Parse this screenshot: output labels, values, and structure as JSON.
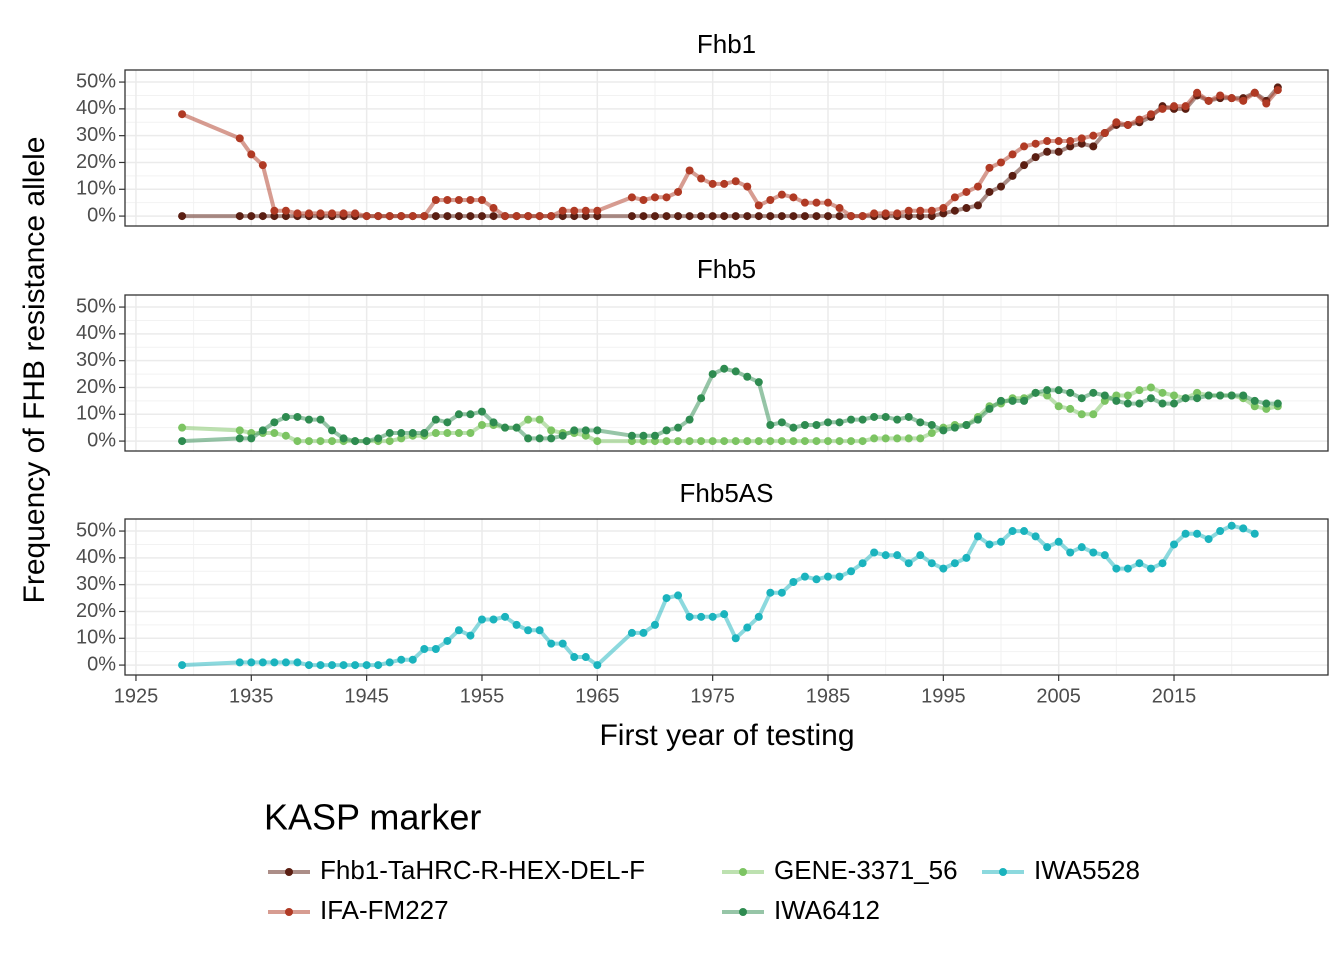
{
  "figure": {
    "ylabel": "Frequency of FHB resistance allele",
    "xlabel": "First year of testing",
    "legend_title": "KASP marker"
  },
  "chart_data": [
    {
      "type": "line",
      "title": "Fhb1",
      "xlim": [
        1924.05,
        2028.35
      ],
      "xticks": [
        1925,
        1935,
        1945,
        1955,
        1965,
        1975,
        1985,
        1995,
        2005,
        2015
      ],
      "ylim": [
        -3.7,
        54.5
      ],
      "yticks": [
        {
          "value": 0,
          "label": "0%"
        },
        {
          "value": 10,
          "label": "10%"
        },
        {
          "value": 20,
          "label": "20%"
        },
        {
          "value": 30,
          "label": "30%"
        },
        {
          "value": 40,
          "label": "40%"
        },
        {
          "value": 50,
          "label": "50%"
        }
      ],
      "grid": true,
      "x": [
        1929,
        1934,
        1935,
        1936,
        1937,
        1938,
        1939,
        1940,
        1941,
        1942,
        1943,
        1944,
        1945,
        1946,
        1947,
        1948,
        1949,
        1950,
        1951,
        1952,
        1953,
        1954,
        1955,
        1956,
        1957,
        1958,
        1959,
        1960,
        1961,
        1962,
        1963,
        1964,
        1965,
        1968,
        1969,
        1970,
        1971,
        1972,
        1973,
        1974,
        1975,
        1976,
        1977,
        1978,
        1979,
        1980,
        1981,
        1982,
        1983,
        1984,
        1985,
        1986,
        1987,
        1988,
        1989,
        1990,
        1991,
        1992,
        1993,
        1994,
        1995,
        1996,
        1997,
        1998,
        1999,
        2000,
        2001,
        2002,
        2003,
        2004,
        2005,
        2006,
        2007,
        2008,
        2009,
        2010,
        2011,
        2012,
        2013,
        2014,
        2015,
        2016,
        2017,
        2018,
        2019,
        2020,
        2021,
        2022,
        2023,
        2024
      ],
      "series": [
        {
          "name": "Fhb1-TaHRC-R-HEX-DEL-F",
          "color": "#5a1e12",
          "values": [
            0,
            0,
            0,
            0,
            0,
            0,
            0,
            0,
            0,
            0,
            0,
            0,
            0,
            0,
            0,
            0,
            0,
            0,
            0,
            0,
            0,
            0,
            0,
            0,
            0,
            0,
            0,
            0,
            0,
            0,
            0,
            0,
            0,
            0,
            0,
            0,
            0,
            0,
            0,
            0,
            0,
            0,
            0,
            0,
            0,
            0,
            0,
            0,
            0,
            0,
            0,
            0,
            0,
            0,
            0,
            0,
            0,
            0,
            0,
            0,
            1,
            2,
            3,
            4,
            9,
            11,
            15,
            19,
            22,
            24,
            24,
            26,
            27,
            26,
            31,
            34,
            34,
            35,
            37,
            41,
            40,
            40,
            45,
            43,
            44,
            44,
            44,
            46,
            43,
            48
          ]
        },
        {
          "name": "IFA-FM227",
          "color": "#b03a24",
          "values": [
            38,
            29,
            23,
            19,
            2,
            2,
            1,
            1,
            1,
            1,
            1,
            1,
            0,
            0,
            0,
            0,
            0,
            0,
            6,
            6,
            6,
            6,
            6,
            3,
            0,
            0,
            0,
            0,
            0,
            2,
            2,
            2,
            2,
            7,
            6,
            7,
            7,
            9,
            17,
            14,
            12,
            12,
            13,
            11,
            4,
            6,
            8,
            7,
            5,
            5,
            5,
            3,
            0,
            0,
            1,
            1,
            1,
            2,
            2,
            2,
            3,
            7,
            9,
            11,
            18,
            20,
            23,
            26,
            27,
            28,
            28,
            28,
            29,
            30,
            31,
            35,
            34,
            36,
            38,
            40,
            41,
            41,
            46,
            43,
            45,
            44,
            43,
            46,
            42,
            47
          ]
        }
      ]
    },
    {
      "type": "line",
      "title": "Fhb5",
      "xlim": [
        1924.05,
        2028.35
      ],
      "xticks": [
        1925,
        1935,
        1945,
        1955,
        1965,
        1975,
        1985,
        1995,
        2005,
        2015
      ],
      "ylim": [
        -3.7,
        54.5
      ],
      "yticks": [
        {
          "value": 0,
          "label": "0%"
        },
        {
          "value": 10,
          "label": "10%"
        },
        {
          "value": 20,
          "label": "20%"
        },
        {
          "value": 30,
          "label": "30%"
        },
        {
          "value": 40,
          "label": "40%"
        },
        {
          "value": 50,
          "label": "50%"
        }
      ],
      "grid": true,
      "x": [
        1929,
        1934,
        1935,
        1936,
        1937,
        1938,
        1939,
        1940,
        1941,
        1942,
        1943,
        1944,
        1945,
        1946,
        1947,
        1948,
        1949,
        1950,
        1951,
        1952,
        1953,
        1954,
        1955,
        1956,
        1957,
        1958,
        1959,
        1960,
        1961,
        1962,
        1963,
        1964,
        1965,
        1968,
        1969,
        1970,
        1971,
        1972,
        1973,
        1974,
        1975,
        1976,
        1977,
        1978,
        1979,
        1980,
        1981,
        1982,
        1983,
        1984,
        1985,
        1986,
        1987,
        1988,
        1989,
        1990,
        1991,
        1992,
        1993,
        1994,
        1995,
        1996,
        1997,
        1998,
        1999,
        2000,
        2001,
        2002,
        2003,
        2004,
        2005,
        2006,
        2007,
        2008,
        2009,
        2010,
        2011,
        2012,
        2013,
        2014,
        2015,
        2016,
        2017,
        2018,
        2019,
        2020,
        2021,
        2022,
        2023,
        2024
      ],
      "series": [
        {
          "name": "GENE-3371_56",
          "color": "#7cc462",
          "values": [
            5,
            4,
            3,
            3,
            3,
            2,
            0,
            0,
            0,
            0,
            0,
            0,
            0,
            0,
            0,
            1,
            2,
            2,
            3,
            3,
            3,
            3,
            6,
            6,
            5,
            5,
            8,
            8,
            4,
            3,
            3,
            2,
            0,
            0,
            0,
            0,
            0,
            0,
            0,
            0,
            0,
            0,
            0,
            0,
            0,
            0,
            0,
            0,
            0,
            0,
            0,
            0,
            0,
            0,
            1,
            1,
            1,
            1,
            1,
            3,
            5,
            6,
            6,
            9,
            13,
            14,
            16,
            16,
            18,
            17,
            13,
            12,
            10,
            10,
            15,
            17,
            17,
            19,
            20,
            18,
            17,
            16,
            18,
            17,
            17,
            17,
            16,
            13,
            12,
            13
          ]
        },
        {
          "name": "IWA6412",
          "color": "#2e8b50",
          "values": [
            0,
            1,
            1,
            4,
            7,
            9,
            9,
            8,
            8,
            4,
            1,
            0,
            0,
            1,
            3,
            3,
            3,
            3,
            8,
            7,
            10,
            10,
            11,
            7,
            5,
            5,
            1,
            1,
            1,
            2,
            4,
            4,
            4,
            2,
            2,
            2,
            4,
            5,
            8,
            16,
            25,
            27,
            26,
            24,
            22,
            6,
            7,
            5,
            6,
            6,
            7,
            7,
            8,
            8,
            9,
            9,
            8,
            9,
            7,
            6,
            4,
            5,
            6,
            8,
            12,
            15,
            15,
            15,
            18,
            19,
            19,
            18,
            16,
            18,
            17,
            15,
            14,
            14,
            16,
            14,
            14,
            16,
            16,
            17,
            17,
            17,
            17,
            15,
            14,
            14
          ]
        }
      ]
    },
    {
      "type": "line",
      "title": "Fhb5AS",
      "xlim": [
        1924.05,
        2028.35
      ],
      "xticks": [
        1925,
        1935,
        1945,
        1955,
        1965,
        1975,
        1985,
        1995,
        2005,
        2015
      ],
      "ylim": [
        -3.7,
        54.5
      ],
      "yticks": [
        {
          "value": 0,
          "label": "0%"
        },
        {
          "value": 10,
          "label": "10%"
        },
        {
          "value": 20,
          "label": "20%"
        },
        {
          "value": 30,
          "label": "30%"
        },
        {
          "value": 40,
          "label": "40%"
        },
        {
          "value": 50,
          "label": "50%"
        }
      ],
      "grid": true,
      "x": [
        1929,
        1934,
        1935,
        1936,
        1937,
        1938,
        1939,
        1940,
        1941,
        1942,
        1943,
        1944,
        1945,
        1946,
        1947,
        1948,
        1949,
        1950,
        1951,
        1952,
        1953,
        1954,
        1955,
        1956,
        1957,
        1958,
        1959,
        1960,
        1961,
        1962,
        1963,
        1964,
        1965,
        1968,
        1969,
        1970,
        1971,
        1972,
        1973,
        1974,
        1975,
        1976,
        1977,
        1978,
        1979,
        1980,
        1981,
        1982,
        1983,
        1984,
        1985,
        1986,
        1987,
        1988,
        1989,
        1990,
        1991,
        1992,
        1993,
        1994,
        1995,
        1996,
        1997,
        1998,
        1999,
        2000,
        2001,
        2002,
        2003,
        2004,
        2005,
        2006,
        2007,
        2008,
        2009,
        2010,
        2011,
        2012,
        2013,
        2014,
        2015,
        2016,
        2017,
        2018,
        2019,
        2020,
        2021,
        2022
      ],
      "series": [
        {
          "name": "IWA5528",
          "color": "#1ab3bd",
          "values": [
            0,
            1,
            1,
            1,
            1,
            1,
            1,
            0,
            0,
            0,
            0,
            0,
            0,
            0,
            1,
            2,
            2,
            6,
            6,
            9,
            13,
            11,
            17,
            17,
            18,
            15,
            13,
            13,
            8,
            8,
            3,
            3,
            0,
            12,
            12,
            15,
            25,
            26,
            18,
            18,
            18,
            19,
            10,
            14,
            18,
            27,
            27,
            31,
            33,
            32,
            33,
            33,
            35,
            38,
            42,
            41,
            41,
            38,
            41,
            38,
            36,
            38,
            40,
            48,
            45,
            46,
            50,
            50,
            48,
            44,
            46,
            42,
            44,
            42,
            41,
            36,
            36,
            38,
            36,
            38,
            45,
            49,
            49,
            47,
            50,
            52,
            51,
            49
          ]
        }
      ]
    }
  ]
}
